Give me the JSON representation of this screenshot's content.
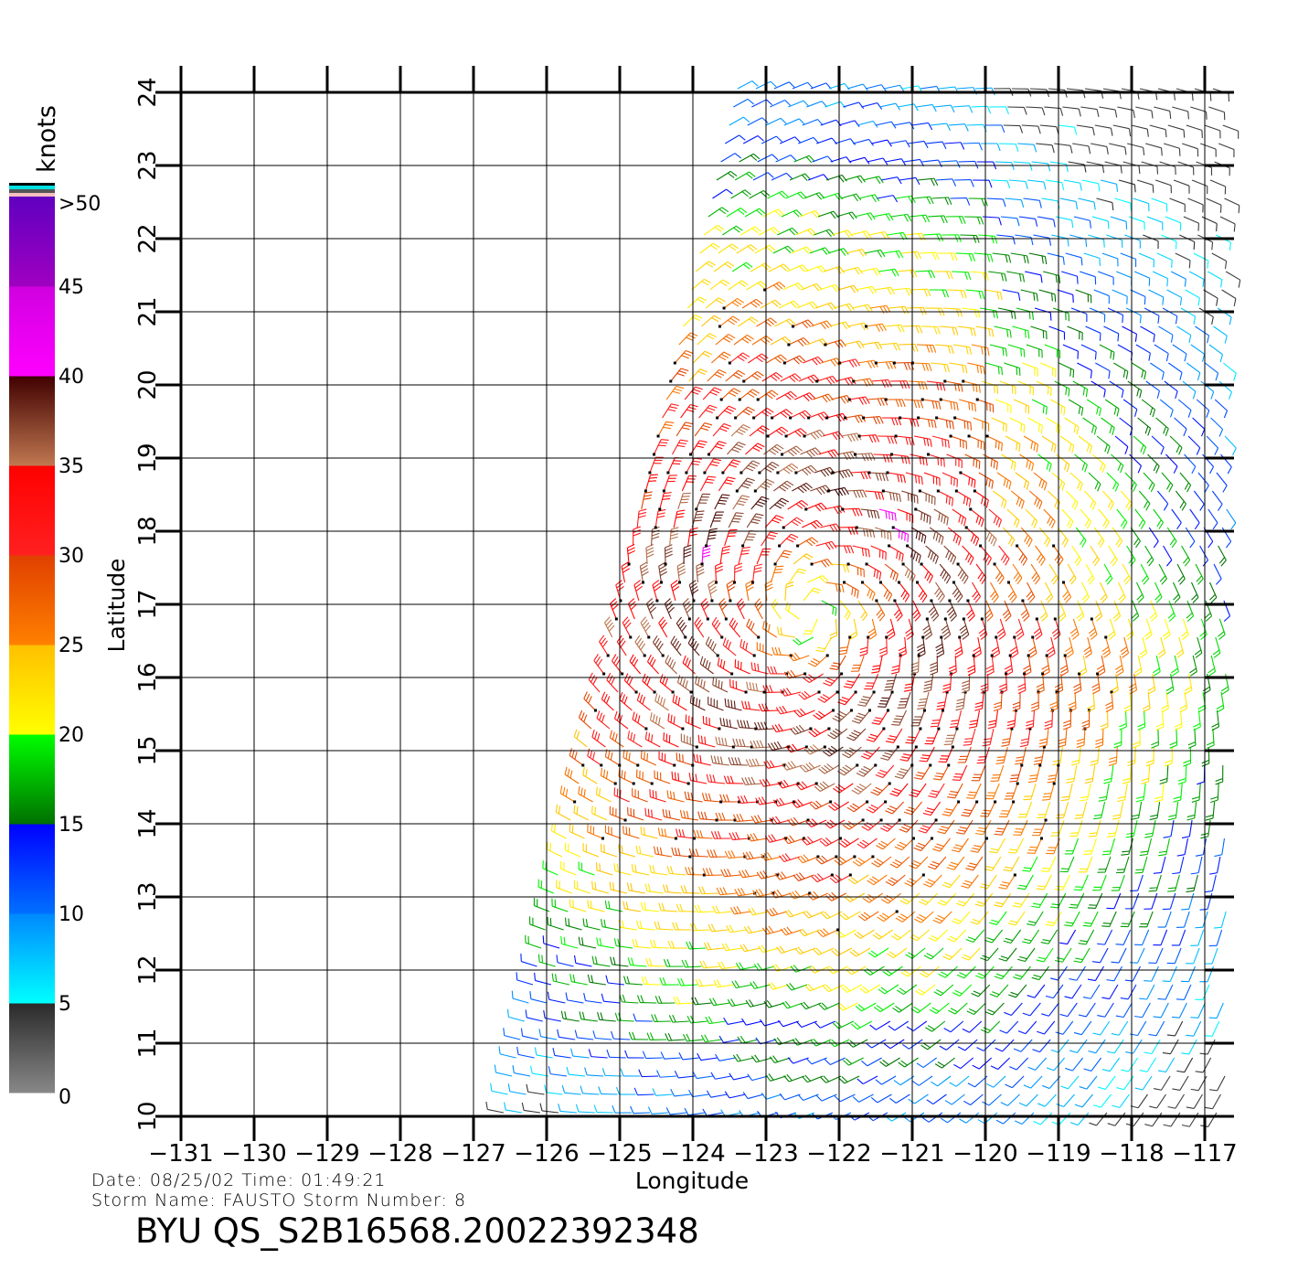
{
  "chart_data": {
    "type": "wind-barb-map",
    "xlabel": "Longitude",
    "ylabel": "Latitude",
    "xlim": [
      -131,
      -117
    ],
    "ylim": [
      10,
      24
    ],
    "xticks": [
      "-131",
      "-130",
      "-129",
      "-128",
      "-127",
      "-126",
      "-125",
      "-124",
      "-123",
      "-122",
      "-121",
      "-120",
      "-119",
      "-118",
      "-117"
    ],
    "yticks": [
      "10",
      "11",
      "12",
      "13",
      "14",
      "15",
      "16",
      "17",
      "18",
      "19",
      "20",
      "21",
      "22",
      "23",
      "24"
    ],
    "grid": true,
    "storm_center": {
      "lon": -122.4,
      "lat": 16.9
    },
    "swath": {
      "west_lon_at_10": -126.6,
      "west_lon_at_24": -123.4,
      "east_lon": -116.7
    },
    "colorbar": {
      "label": "knots",
      "tick_labels": [
        "0",
        "5",
        "10",
        "15",
        "20",
        "25",
        "30",
        "35",
        "40",
        "45",
        ">50"
      ],
      "bins": [
        {
          "min": 0,
          "max": 5,
          "colors": [
            "#888888",
            "#2a2a2a"
          ]
        },
        {
          "min": 5,
          "max": 10,
          "colors": [
            "#00ffff",
            "#0088ff"
          ]
        },
        {
          "min": 10,
          "max": 15,
          "colors": [
            "#0070ff",
            "#0000ff"
          ]
        },
        {
          "min": 15,
          "max": 20,
          "colors": [
            "#007000",
            "#00ff00"
          ]
        },
        {
          "min": 20,
          "max": 25,
          "colors": [
            "#ffff00",
            "#ffc000"
          ]
        },
        {
          "min": 25,
          "max": 30,
          "colors": [
            "#ff8000",
            "#e04000"
          ]
        },
        {
          "min": 30,
          "max": 35,
          "colors": [
            "#ff2020",
            "#ff0000"
          ]
        },
        {
          "min": 35,
          "max": 40,
          "colors": [
            "#c07850",
            "#400000"
          ]
        },
        {
          "min": 40,
          "max": 45,
          "colors": [
            "#ff00ff",
            "#d000e0"
          ]
        },
        {
          "min": 45,
          "max": 50,
          "colors": [
            "#a000c0",
            "#6000c0"
          ]
        }
      ]
    }
  },
  "info": {
    "date_line": "Date:  08/25/02   Time:  01:49:21",
    "storm_line": "Storm  Name:  FAUSTO   Storm  Number:  8",
    "title": "BYU  QS_S2B16568.20022392348"
  }
}
